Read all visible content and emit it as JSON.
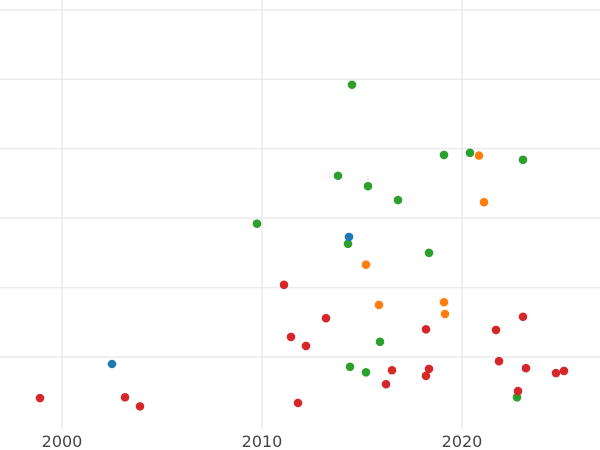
{
  "chart_data": {
    "type": "scatter",
    "title": "",
    "xlabel": "",
    "ylabel": "",
    "xlim": [
      1996.9,
      2026.9
    ],
    "ylim": [
      -1.05,
      5.14
    ],
    "grid": true,
    "legend": "none",
    "x_ticks": [
      2000,
      2010,
      2020
    ],
    "x_tick_labels": [
      "2000",
      "2010",
      "2020"
    ],
    "y_gridlines": [
      0,
      1,
      2,
      3,
      4,
      5
    ],
    "series": [
      {
        "color": "#2ca02c",
        "points": [
          [
            2014.5,
            3.92
          ],
          [
            2019.1,
            2.91
          ],
          [
            2020.4,
            2.94
          ],
          [
            2023.05,
            2.84
          ],
          [
            2013.8,
            2.61
          ],
          [
            2015.3,
            2.46
          ],
          [
            2016.8,
            2.26
          ],
          [
            2009.75,
            1.92
          ],
          [
            2014.3,
            1.63
          ],
          [
            2018.35,
            1.5
          ],
          [
            2015.9,
            0.22
          ],
          [
            2014.4,
            -0.14
          ],
          [
            2015.2,
            -0.22
          ],
          [
            2022.75,
            -0.58
          ]
        ]
      },
      {
        "color": "#ff7f0e",
        "points": [
          [
            2020.85,
            2.9
          ],
          [
            2021.1,
            2.23
          ],
          [
            2015.2,
            1.33
          ],
          [
            2015.85,
            0.75
          ],
          [
            2019.1,
            0.79
          ],
          [
            2019.15,
            0.62
          ]
        ]
      },
      {
        "color": "#1f77b4",
        "points": [
          [
            2014.35,
            1.73
          ],
          [
            2002.5,
            -0.1
          ]
        ]
      },
      {
        "color": "#d62728",
        "points": [
          [
            1998.9,
            -0.59
          ],
          [
            2003.15,
            -0.58
          ],
          [
            2003.9,
            -0.71
          ],
          [
            2011.1,
            1.04
          ],
          [
            2011.45,
            0.29
          ],
          [
            2012.2,
            0.16
          ],
          [
            2013.2,
            0.56
          ],
          [
            2018.2,
            0.4
          ],
          [
            2021.7,
            0.39
          ],
          [
            2023.05,
            0.58
          ],
          [
            2021.85,
            -0.06
          ],
          [
            2018.35,
            -0.17
          ],
          [
            2016.5,
            -0.19
          ],
          [
            2018.2,
            -0.27
          ],
          [
            2016.2,
            -0.39
          ],
          [
            2023.2,
            -0.16
          ],
          [
            2024.7,
            -0.23
          ],
          [
            2025.1,
            -0.2
          ],
          [
            2022.8,
            -0.49
          ],
          [
            2011.8,
            -0.66
          ]
        ]
      }
    ]
  }
}
